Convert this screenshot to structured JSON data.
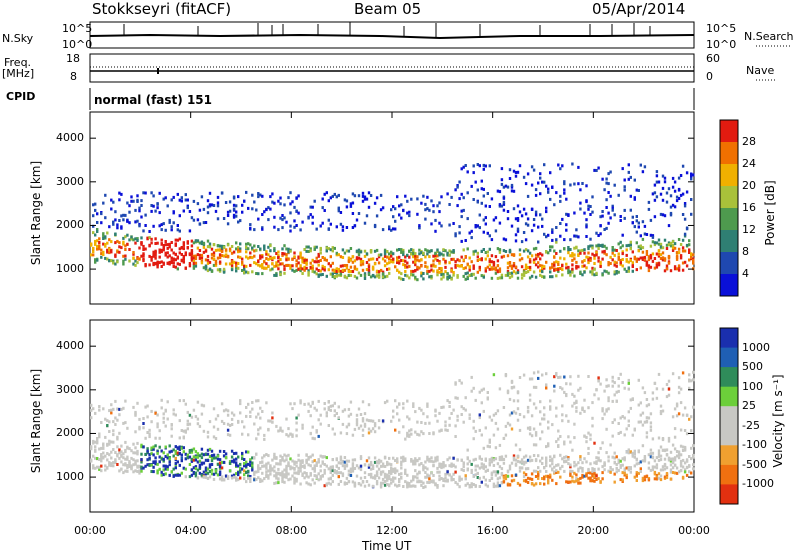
{
  "header": {
    "station": "Stokkseyri (fitACF)",
    "beam": "Beam 05",
    "date": "05/Apr/2014"
  },
  "top_panel": {
    "nsky_label": "N.Sky",
    "nsky_ticks": [
      "10^5",
      "10^0"
    ],
    "nsearch_label": "N.Search",
    "nsearch_ticks": [
      "10^5",
      "10^0"
    ],
    "freq_label_1": "Freq.",
    "freq_label_2": "[MHz]",
    "freq_ticks": [
      "18",
      "8"
    ],
    "nave_label": "Nave",
    "nave_ticks": [
      "60",
      "0"
    ],
    "cpid_label": "CPID",
    "cpid_value": "normal (fast) 151"
  },
  "chart_data": [
    {
      "type": "heatmap",
      "name": "power",
      "ylabel": "Slant Range [km]",
      "yticks": [
        "4000",
        "3000",
        "2000",
        "1000"
      ],
      "ylim": [
        200,
        4600
      ],
      "x_ticks": [
        "00:00",
        "04:00",
        "08:00",
        "12:00",
        "16:00",
        "20:00",
        "00:00"
      ],
      "colorbar_label": "Power [dB]",
      "colorbar_ticks": [
        "28",
        "24",
        "20",
        "16",
        "12",
        "8",
        "4"
      ],
      "colors": [
        "#0a10d8",
        "#1f48b0",
        "#2f7f73",
        "#4e9a4e",
        "#a9c13a",
        "#f0b000",
        "#f07000",
        "#e21b10"
      ]
    },
    {
      "type": "heatmap",
      "name": "velocity",
      "ylabel": "Slant Range [km]",
      "yticks": [
        "4000",
        "3000",
        "2000",
        "1000"
      ],
      "ylim": [
        200,
        4600
      ],
      "x_ticks": [
        "00:00",
        "04:00",
        "08:00",
        "12:00",
        "16:00",
        "20:00",
        "00:00"
      ],
      "xlabel": "Time UT",
      "colorbar_label": "Velocity [m s⁻¹]",
      "colorbar_ticks": [
        "1000",
        "500",
        "100",
        "25",
        "-25",
        "-100",
        "-500",
        "-1000"
      ],
      "colors": [
        "#1a2fae",
        "#1f5fb4",
        "#2f8c5a",
        "#6ccf3a",
        "#c8c8c4",
        "#c8c8c4",
        "#f0a030",
        "#f07010",
        "#e23010"
      ]
    }
  ]
}
